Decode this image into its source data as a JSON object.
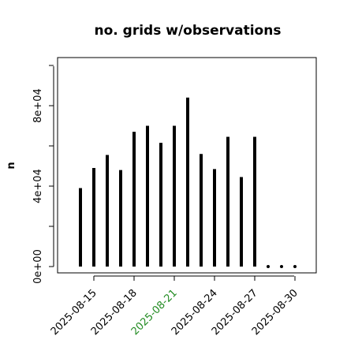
{
  "chart_data": {
    "type": "bar",
    "title": "no. grids w/observations",
    "ylabel": "n",
    "xlabel": "",
    "ylim": [
      -2000,
      100000
    ],
    "grid": false,
    "y_ticks": [
      0,
      20000,
      40000,
      60000,
      80000,
      100000
    ],
    "y_tick_labels": [
      "0e+00",
      "4e+04",
      "8e+04"
    ],
    "y_tick_label_values": [
      0,
      40000,
      80000
    ],
    "categories": [
      "2025-08-14",
      "2025-08-15",
      "2025-08-16",
      "2025-08-17",
      "2025-08-18",
      "2025-08-19",
      "2025-08-20",
      "2025-08-21",
      "2025-08-22",
      "2025-08-23",
      "2025-08-24",
      "2025-08-25",
      "2025-08-26",
      "2025-08-27",
      "2025-08-28",
      "2025-08-29",
      "2025-08-30"
    ],
    "values": [
      39000,
      49000,
      55500,
      48000,
      67000,
      70000,
      61500,
      70000,
      84000,
      56000,
      48500,
      64500,
      44500,
      64500,
      0,
      0,
      0
    ],
    "x_tick_labels": [
      "2025-08-15",
      "2025-08-18",
      "2025-08-21",
      "2025-08-24",
      "2025-08-27",
      "2025-08-30"
    ],
    "x_tick_colors": [
      "#000000",
      "#000000",
      "#228b22",
      "#000000",
      "#000000",
      "#000000"
    ]
  }
}
